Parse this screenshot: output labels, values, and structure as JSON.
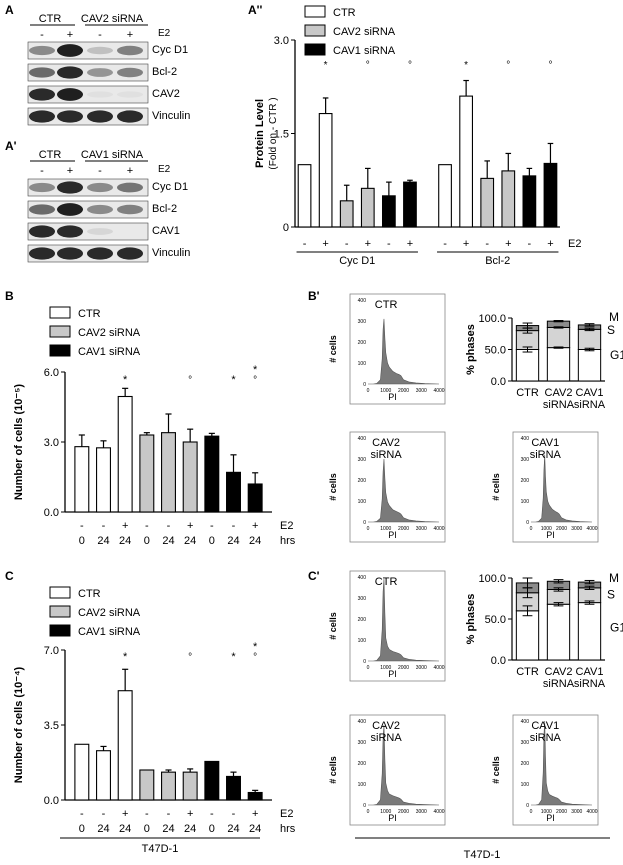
{
  "panel_labels": {
    "A": "A",
    "A_prime": "A'",
    "A_dprime": "A''",
    "B": "B",
    "B_prime": "B'",
    "C": "C",
    "C_prime": "C'"
  },
  "blot_A": {
    "groups": [
      "CTR",
      "CAV2 siRNA"
    ],
    "treatment_label": "E2",
    "signs": [
      "-",
      "+",
      "-",
      "+"
    ],
    "rows": [
      "Cyc D1",
      "Bcl-2",
      "CAV2",
      "Vinculin"
    ]
  },
  "blot_A_prime": {
    "groups": [
      "CTR",
      "CAV1 siRNA"
    ],
    "treatment_label": "E2",
    "signs": [
      "-",
      "+",
      "-",
      "+"
    ],
    "rows": [
      "Cyc D1",
      "Bcl-2",
      "CAV1",
      "Vinculin"
    ]
  },
  "legend": [
    "CTR",
    "CAV2 siRNA",
    "CAV1 siRNA"
  ],
  "colors": {
    "CTR": "#ffffff",
    "CAV2 siRNA": "#c8c8c8",
    "CAV1 siRNA": "#000000",
    "histogram": "#7a7a7a",
    "G1": "#ffffff",
    "S": "#d4d4d4",
    "M": "#8c8c8c"
  },
  "footer": {
    "cell_line": "T47D-1",
    "cell_line_right": "T47D-1"
  },
  "chart_data": [
    {
      "id": "A_dprime",
      "type": "bar",
      "ylabel": "Protein Level",
      "ylabel2": "(Fold on - CTR )",
      "ylim": [
        0,
        3.0
      ],
      "yticks": [
        "0",
        "1.5",
        "3.0"
      ],
      "signs": [
        "-",
        "+",
        "-",
        "+",
        "-",
        "+",
        "-",
        "+",
        "-",
        "+",
        "-",
        "+"
      ],
      "treatment_label": "E2",
      "group_labels": [
        "Cyc D1",
        "Bcl-2"
      ],
      "series_of_bar": [
        "CTR",
        "CTR",
        "CAV2 siRNA",
        "CAV2 siRNA",
        "CAV1 siRNA",
        "CAV1 siRNA",
        "CTR",
        "CTR",
        "CAV2 siRNA",
        "CAV2 siRNA",
        "CAV1 siRNA",
        "CAV1 siRNA"
      ],
      "values": [
        1.0,
        1.82,
        0.42,
        0.62,
        0.5,
        0.72,
        1.0,
        2.1,
        0.78,
        0.9,
        0.82,
        1.02
      ],
      "errors": [
        0,
        0.25,
        0.25,
        0.32,
        0.22,
        0.03,
        0,
        0.25,
        0.28,
        0.28,
        0.12,
        0.32
      ],
      "annotations": [
        "*",
        "°",
        "°",
        "*",
        "°",
        "°"
      ]
    },
    {
      "id": "B",
      "type": "bar",
      "ylabel": "Number of cells (10⁻⁵)",
      "ylim": [
        0,
        6.0
      ],
      "yticks": [
        "0.0",
        "3.0",
        "6.0"
      ],
      "signs": [
        "-",
        "-",
        "+",
        "-",
        "-",
        "+",
        "-",
        "-",
        "+"
      ],
      "hours": [
        "0",
        "24",
        "24",
        "0",
        "24",
        "24",
        "0",
        "24",
        "24"
      ],
      "treatment_label": "E2",
      "hours_label": "hrs",
      "series_of_bar": [
        "CTR",
        "CTR",
        "CTR",
        "CAV2 siRNA",
        "CAV2 siRNA",
        "CAV2 siRNA",
        "CAV1 siRNA",
        "CAV1 siRNA",
        "CAV1 siRNA"
      ],
      "values": [
        2.8,
        2.75,
        4.95,
        3.3,
        3.4,
        3.0,
        3.25,
        1.7,
        1.2
      ],
      "errors": [
        0.5,
        0.3,
        0.35,
        0.1,
        0.8,
        0.55,
        0.12,
        0.75,
        0.48
      ],
      "annotations": [
        "*",
        "°",
        "*",
        "*",
        "°"
      ]
    },
    {
      "id": "C",
      "type": "bar",
      "ylabel": "Number of cells (10⁻⁴)",
      "ylim": [
        0,
        7.0
      ],
      "yticks": [
        "0.0",
        "3.5",
        "7.0"
      ],
      "signs": [
        "-",
        "-",
        "+",
        "-",
        "-",
        "+",
        "-",
        "-",
        "+"
      ],
      "hours": [
        "0",
        "24",
        "24",
        "0",
        "24",
        "24",
        "0",
        "24",
        "24"
      ],
      "treatment_label": "E2",
      "hours_label": "hrs",
      "series_of_bar": [
        "CTR",
        "CTR",
        "CTR",
        "CAV2 siRNA",
        "CAV2 siRNA",
        "CAV2 siRNA",
        "CAV1 siRNA",
        "CAV1 siRNA",
        "CAV1 siRNA"
      ],
      "values": [
        2.6,
        2.3,
        5.1,
        1.4,
        1.3,
        1.3,
        1.8,
        1.1,
        0.35
      ],
      "errors": [
        0,
        0.2,
        1.0,
        0,
        0.1,
        0.15,
        0,
        0.2,
        0.1
      ],
      "annotations": [
        "*",
        "°",
        "*",
        "*",
        "°"
      ]
    },
    {
      "id": "B_prime_phases",
      "type": "bar",
      "ylabel": "% phases",
      "ylim": [
        0,
        100
      ],
      "yticks": [
        "0.0",
        "50.0",
        "100.0"
      ],
      "categories": [
        "CTR",
        "CAV2\nsiRNA",
        "CAV1\nsiRNA"
      ],
      "phase_labels": [
        "M",
        "S",
        "G1"
      ],
      "G1": [
        50,
        53,
        50
      ],
      "S": [
        30,
        32,
        32
      ],
      "M": [
        8,
        10,
        7
      ],
      "errors": [
        4,
        1,
        2
      ]
    },
    {
      "id": "C_prime_phases",
      "type": "bar",
      "ylabel": "% phases",
      "ylim": [
        0,
        100
      ],
      "yticks": [
        "0.0",
        "50.0",
        "100.0"
      ],
      "categories": [
        "CTR",
        "CAV2\nsiRNA",
        "CAV1\nsiRNA"
      ],
      "phase_labels": [
        "M",
        "S",
        "G1"
      ],
      "G1": [
        60,
        68,
        70
      ],
      "S": [
        22,
        18,
        18
      ],
      "M": [
        12,
        10,
        7
      ],
      "errors": [
        6,
        2,
        2
      ]
    },
    {
      "id": "B_prime_hist",
      "type": "area",
      "titles": [
        "CTR",
        "CAV2\nsiRNA",
        "CAV1\nsiRNA"
      ],
      "xlabel": "PI",
      "ylabel": "# cells",
      "xticks": [
        "0",
        "1000",
        "2000",
        "3000",
        "4000"
      ],
      "yticks": [
        "0",
        "100",
        "200",
        "300",
        "400"
      ],
      "ylim": [
        0,
        400
      ],
      "x": [
        0,
        300,
        500,
        700,
        800,
        850,
        900,
        950,
        1000,
        1100,
        1200,
        1400,
        1600,
        1750,
        1850,
        2000,
        2300,
        2700,
        3200,
        4000
      ],
      "series": [
        {
          "values": [
            0,
            0,
            3,
            20,
            120,
            260,
            310,
            220,
            150,
            100,
            80,
            60,
            50,
            45,
            40,
            20,
            10,
            5,
            2,
            0
          ]
        },
        {
          "values": [
            0,
            0,
            3,
            18,
            110,
            240,
            300,
            210,
            140,
            95,
            78,
            58,
            50,
            44,
            38,
            20,
            10,
            5,
            2,
            0
          ]
        },
        {
          "values": [
            0,
            0,
            3,
            18,
            115,
            250,
            320,
            215,
            145,
            98,
            80,
            60,
            50,
            44,
            38,
            20,
            10,
            5,
            2,
            0
          ]
        }
      ]
    },
    {
      "id": "C_prime_hist",
      "type": "area",
      "titles": [
        "CTR",
        "CAV2\nsiRNA",
        "CAV1\nsiRNA"
      ],
      "xlabel": "PI",
      "ylabel": "# cells",
      "xticks": [
        "0",
        "1000",
        "2000",
        "3000",
        "4000"
      ],
      "yticks": [
        "0",
        "100",
        "200",
        "300",
        "400"
      ],
      "ylim": [
        0,
        400
      ],
      "x": [
        0,
        300,
        500,
        700,
        800,
        850,
        900,
        950,
        1000,
        1100,
        1200,
        1400,
        1600,
        1750,
        1850,
        2000,
        2300,
        2700,
        3200,
        4000
      ],
      "series": [
        {
          "values": [
            0,
            0,
            3,
            25,
            150,
            330,
            390,
            230,
            110,
            70,
            55,
            45,
            40,
            35,
            30,
            15,
            8,
            4,
            2,
            0
          ]
        },
        {
          "values": [
            0,
            0,
            3,
            25,
            150,
            320,
            380,
            220,
            105,
            68,
            52,
            44,
            38,
            33,
            28,
            14,
            8,
            4,
            2,
            0
          ]
        },
        {
          "values": [
            0,
            0,
            3,
            25,
            155,
            335,
            400,
            230,
            105,
            66,
            50,
            42,
            36,
            32,
            26,
            14,
            8,
            4,
            2,
            0
          ]
        }
      ]
    }
  ]
}
